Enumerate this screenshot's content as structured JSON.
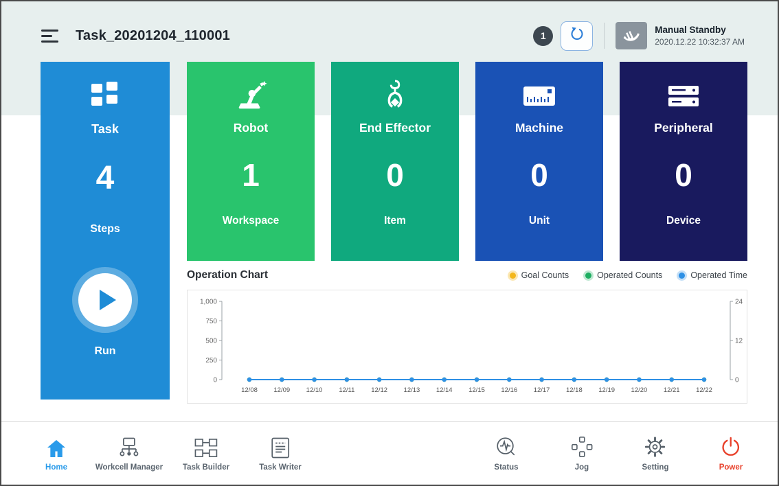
{
  "header": {
    "title": "Task_20201204_110001",
    "badge_count": "1",
    "mode": {
      "label": "Manual Standby",
      "timestamp": "2020.12.22 10:32:37 AM"
    }
  },
  "task_panel": {
    "title": "Task",
    "value": "4",
    "unit": "Steps",
    "run_label": "Run",
    "color": "#1f8cd6"
  },
  "cards": [
    {
      "title": "Robot",
      "value": "1",
      "unit": "Workspace",
      "color": "#29c46d",
      "icon": "robot-arm-icon"
    },
    {
      "title": "End Effector",
      "value": "0",
      "unit": "Item",
      "color": "#10a97e",
      "icon": "gripper-icon"
    },
    {
      "title": "Machine",
      "value": "0",
      "unit": "Unit",
      "color": "#1a52b5",
      "icon": "machine-icon"
    },
    {
      "title": "Peripheral",
      "value": "0",
      "unit": "Device",
      "color": "#191a5e",
      "icon": "peripheral-icon"
    }
  ],
  "chart": {
    "title": "Operation Chart"
  },
  "chart_data": {
    "type": "line",
    "title": "Operation Chart",
    "x": [
      "12/08",
      "12/09",
      "12/10",
      "12/11",
      "12/12",
      "12/13",
      "12/14",
      "12/15",
      "12/16",
      "12/17",
      "12/18",
      "12/19",
      "12/20",
      "12/21",
      "12/22"
    ],
    "series": [
      {
        "name": "Goal Counts",
        "color": "#f3b71b",
        "halo": "#fbe7b3",
        "axis": "left",
        "values": [
          0,
          0,
          0,
          0,
          0,
          0,
          0,
          0,
          0,
          0,
          0,
          0,
          0,
          0,
          0
        ]
      },
      {
        "name": "Operated Counts",
        "color": "#1fae62",
        "halo": "#bfe8d2",
        "axis": "left",
        "values": [
          0,
          0,
          0,
          0,
          0,
          0,
          0,
          0,
          0,
          0,
          0,
          0,
          0,
          0,
          0
        ]
      },
      {
        "name": "Operated Time",
        "color": "#2e90e5",
        "halo": "#c4dff7",
        "axis": "right",
        "values": [
          0,
          0,
          0,
          0,
          0,
          0,
          0,
          0,
          0,
          0,
          0,
          0,
          0,
          0,
          0
        ]
      }
    ],
    "left_axis": {
      "max": 1000,
      "ticks": [
        "0",
        "250",
        "500",
        "750",
        "1,000"
      ]
    },
    "right_axis": {
      "max": 24,
      "ticks": [
        "0",
        "12",
        "24"
      ]
    },
    "legend_position": "top-right",
    "grid": false
  },
  "nav": {
    "items": [
      {
        "label": "Home",
        "active": true
      },
      {
        "label": "Workcell Manager"
      },
      {
        "label": "Task Builder"
      },
      {
        "label": "Task Writer"
      },
      {
        "label": "Status"
      },
      {
        "label": "Jog"
      },
      {
        "label": "Setting"
      },
      {
        "label": "Power"
      }
    ]
  }
}
